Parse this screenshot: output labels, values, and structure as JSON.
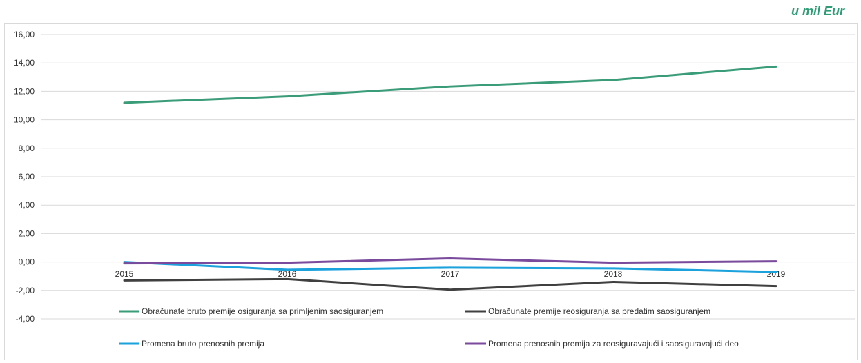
{
  "unit_label": "u mil Eur",
  "chart_data": {
    "type": "line",
    "x": [
      "2015",
      "2016",
      "2017",
      "2018",
      "2019"
    ],
    "ylim": [
      -4,
      16
    ],
    "yticks": [
      "16,00",
      "14,00",
      "12,00",
      "10,00",
      "8,00",
      "6,00",
      "4,00",
      "2,00",
      "0,00",
      "-2,00",
      "-4,00"
    ],
    "grid": true,
    "legend_position": "bottom",
    "series": [
      {
        "name": "Obračunate bruto premije osiguranja sa primljenim saosiguranjem",
        "color": "#3a9c78",
        "values": [
          11.2,
          11.65,
          12.35,
          12.8,
          13.75
        ]
      },
      {
        "name": "Obračunate premije reosiguranja sa predatim saosiguranjem",
        "color": "#404040",
        "values": [
          -1.3,
          -1.2,
          -1.95,
          -1.4,
          -1.7
        ]
      },
      {
        "name": "Promena bruto prenosnih premija",
        "color": "#1ba1dc",
        "values": [
          0.0,
          -0.55,
          -0.4,
          -0.45,
          -0.7
        ]
      },
      {
        "name": "Promena prenosnih premija za reosiguravajući i saosiguravajući deo",
        "color": "#7a4a9c",
        "values": [
          -0.1,
          -0.05,
          0.25,
          -0.05,
          0.05
        ]
      }
    ]
  }
}
